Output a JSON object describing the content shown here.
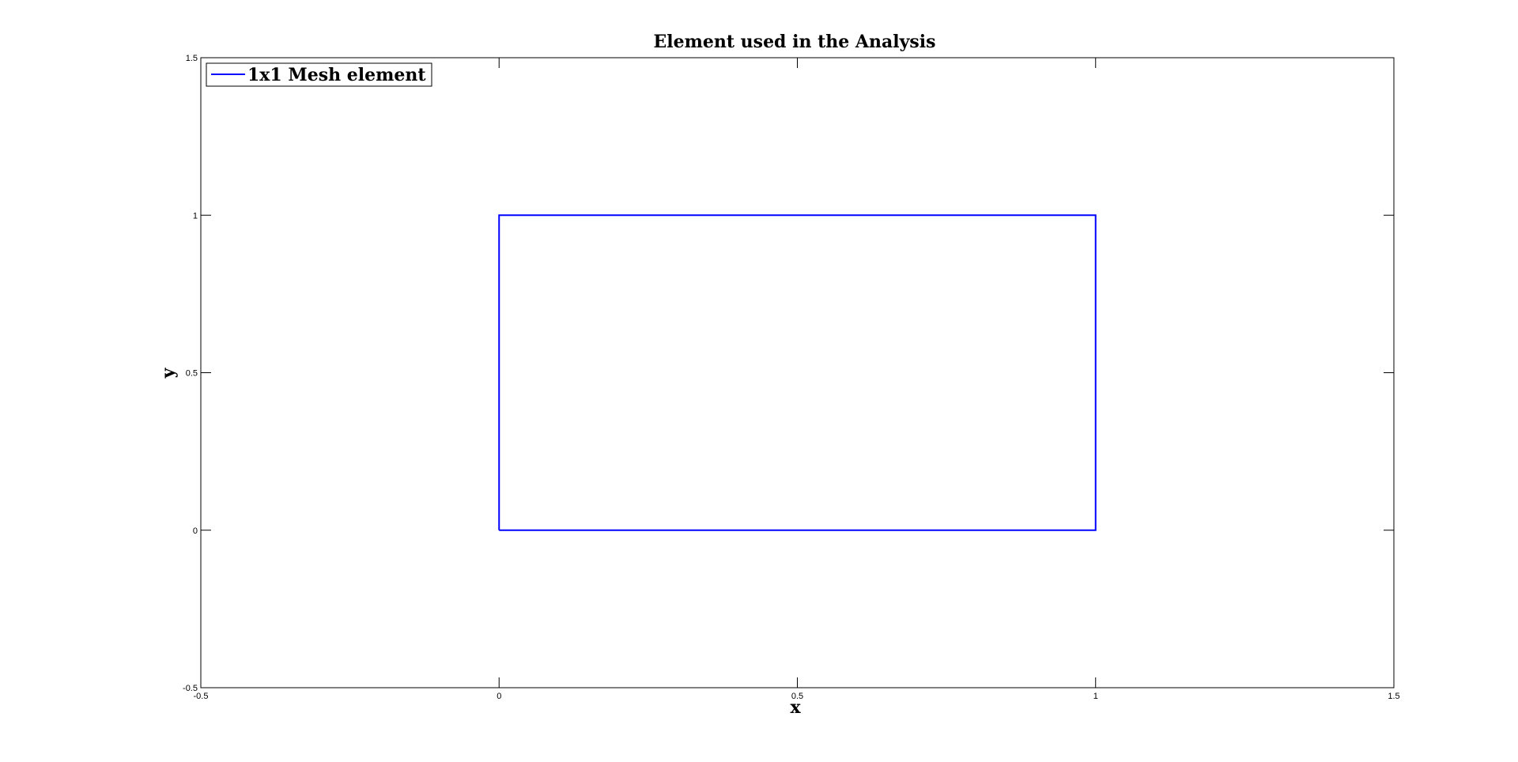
{
  "chart_data": {
    "type": "line",
    "title": "Element used in the Analysis",
    "xlabel": "x",
    "ylabel": "y",
    "xlim": [
      -0.5,
      1.5
    ],
    "ylim": [
      -0.5,
      1.5
    ],
    "xticks": [
      -0.5,
      0,
      0.5,
      1,
      1.5
    ],
    "yticks": [
      -0.5,
      0,
      0.5,
      1,
      1.5
    ],
    "xtick_labels": [
      "-0.5",
      "0",
      "0.5",
      "1",
      "1.5"
    ],
    "ytick_labels": [
      "-0.5",
      "0",
      "0.5",
      "1",
      "1.5"
    ],
    "grid": false,
    "legend_position": "top-left",
    "series": [
      {
        "name": "1x1 Mesh element",
        "color": "#0000ff",
        "x": [
          0,
          1,
          1,
          0,
          0
        ],
        "y": [
          0,
          0,
          1,
          1,
          0
        ]
      }
    ]
  }
}
